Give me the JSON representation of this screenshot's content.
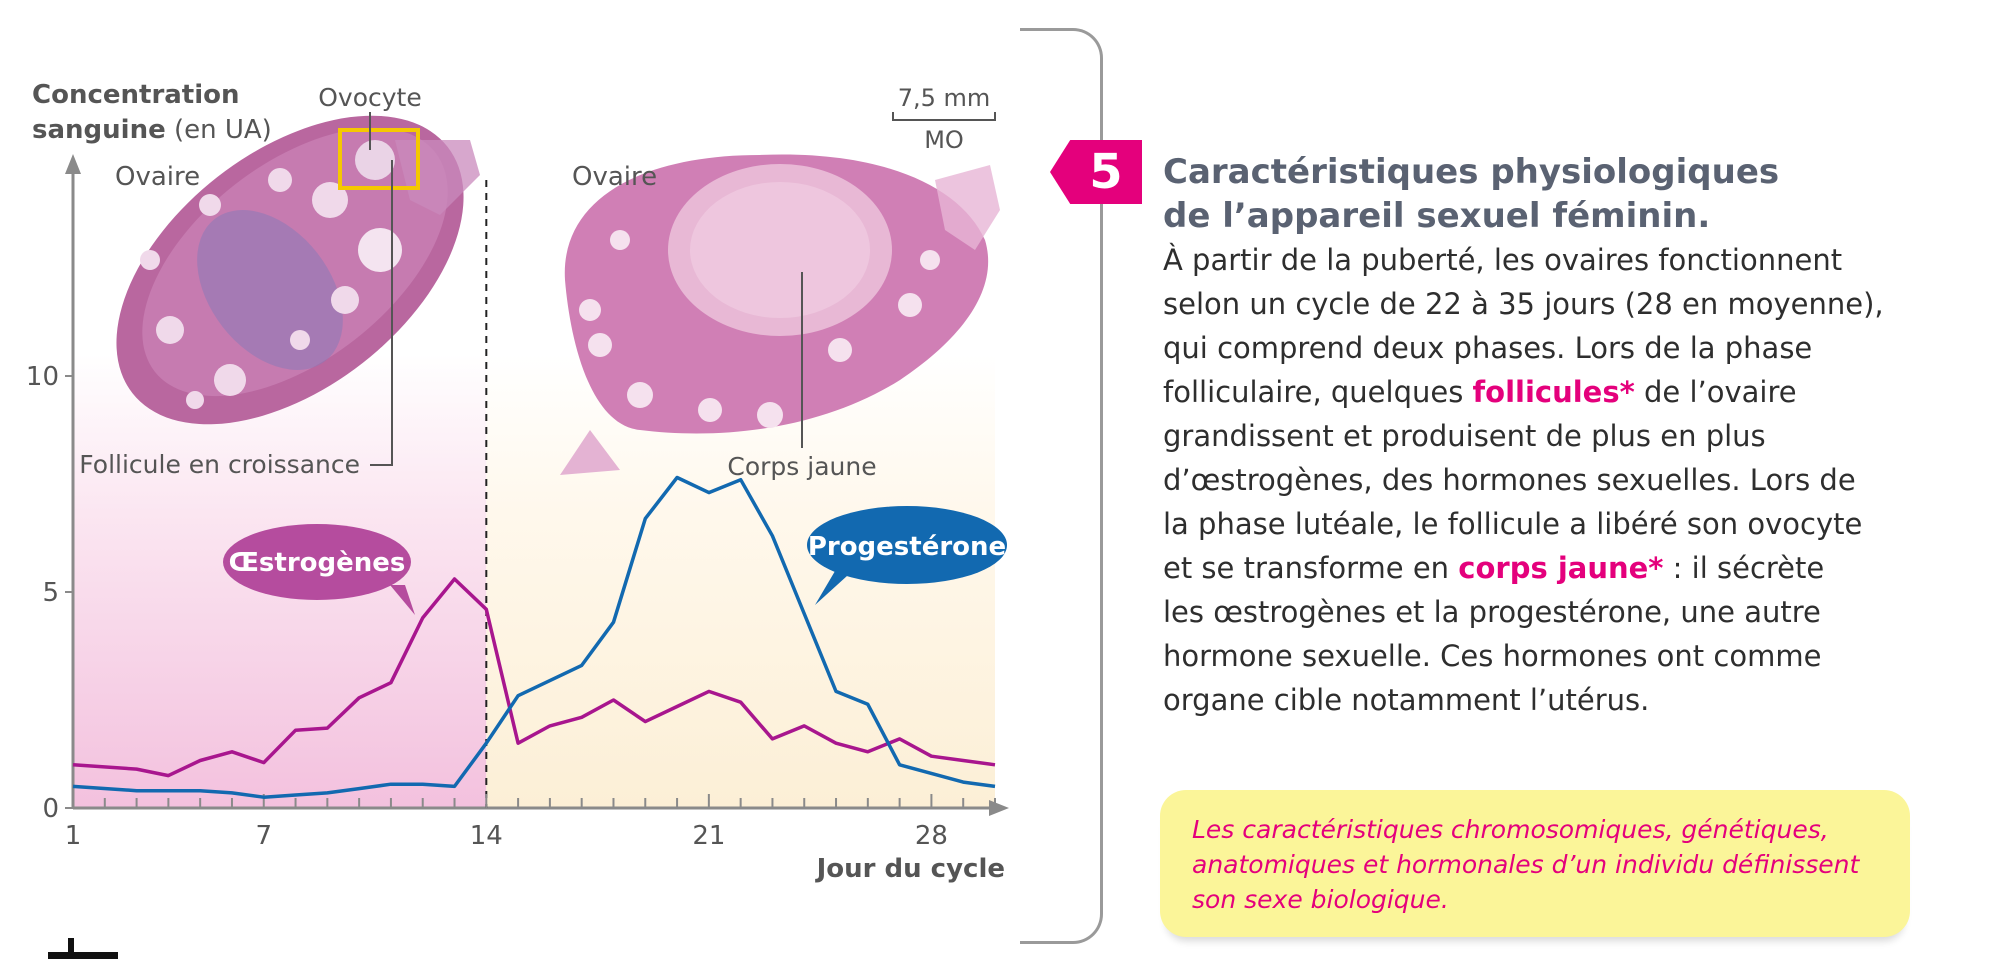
{
  "chart_data": {
    "type": "line",
    "ylabel_line1": "Concentration",
    "ylabel_line2_bold": "sanguine",
    "ylabel_line2_rest": " (en UA)",
    "xlabel": "Jour du cycle",
    "xlim": [
      1,
      30
    ],
    "ylim": [
      0,
      15
    ],
    "xticks": [
      1,
      7,
      14,
      21,
      28
    ],
    "yticks": [
      0,
      5,
      10
    ],
    "phase_boundary_day": 14,
    "series": [
      {
        "name": "Œstrogènes",
        "color": "#a8168e",
        "x": [
          1,
          3,
          4,
          5,
          6,
          7,
          8,
          9,
          10,
          11,
          12,
          13,
          14,
          15,
          16,
          17,
          18,
          19,
          20,
          21,
          22,
          23,
          24,
          25,
          26,
          27,
          28,
          29,
          30
        ],
        "y": [
          1.0,
          0.9,
          0.75,
          1.1,
          1.3,
          1.05,
          1.8,
          1.85,
          2.55,
          2.9,
          4.4,
          5.3,
          4.6,
          1.5,
          1.9,
          2.1,
          2.5,
          2.0,
          2.35,
          2.7,
          2.45,
          1.6,
          1.9,
          1.5,
          1.3,
          1.6,
          1.2,
          1.1,
          1.0
        ]
      },
      {
        "name": "Progestérone",
        "color": "#1269b0",
        "x": [
          1,
          3,
          4,
          5,
          6,
          7,
          8,
          9,
          10,
          11,
          12,
          13,
          14,
          15,
          16,
          17,
          18,
          19,
          20,
          21,
          22,
          23,
          24,
          25,
          26,
          27,
          28,
          29,
          30
        ],
        "y": [
          0.5,
          0.4,
          0.4,
          0.4,
          0.35,
          0.25,
          0.3,
          0.35,
          0.45,
          0.55,
          0.55,
          0.5,
          1.5,
          2.6,
          2.95,
          3.3,
          4.3,
          6.7,
          7.65,
          7.3,
          7.6,
          6.3,
          4.5,
          2.7,
          2.4,
          1.0,
          0.8,
          0.6,
          0.5
        ]
      }
    ],
    "labels": {
      "ovary_left": "Ovaire",
      "ovary_right": "Ovaire",
      "ovocyte": "Ovocyte",
      "follicle": "Follicule en croissance",
      "corps_jaune": "Corps jaune",
      "scale": "7,5 mm",
      "microscope": "MO"
    },
    "colors": {
      "follicular_phase_bg": "#f3c1de",
      "luteal_phase_bg": "#fcefd6",
      "ovary_tissue": "#b85c9e",
      "ovocyte_box": "#f5c800"
    }
  },
  "document": {
    "number": "5",
    "title_line1": "Caractéristiques physiologiques",
    "title_line2": "de l’appareil sexuel féminin.",
    "body": {
      "l1": "À partir de la puberté, les ovaires fonctionnent",
      "l2": "selon un cycle de 22 à 35 jours (28 en moyenne),",
      "l3": "qui comprend deux phases. Lors de la phase",
      "l4a": "folliculaire, quelques ",
      "l4b": "follicules*",
      "l4c": " de l’ovaire",
      "l5": "grandissent et produisent de plus en plus",
      "l6": "d’œstrogènes, des hormones sexuelles. Lors de",
      "l7": "la phase lutéale, le follicule a libéré son ovocyte",
      "l8a": "et se transforme en ",
      "l8b": "corps jaune*",
      "l8c": " : il sécrète",
      "l9": "les œstrogènes et la progestérone, une autre",
      "l10": "hormone sexuelle. Ces hormones ont comme",
      "l11": "organe cible notamment l’utérus."
    },
    "accent_color": "#e4007c"
  },
  "summary": {
    "l1": "Les caractéristiques chromosomiques, génétiques,",
    "l2": "anatomiques et hormonales d’un individu définissent",
    "l3": "son sexe biologique."
  }
}
